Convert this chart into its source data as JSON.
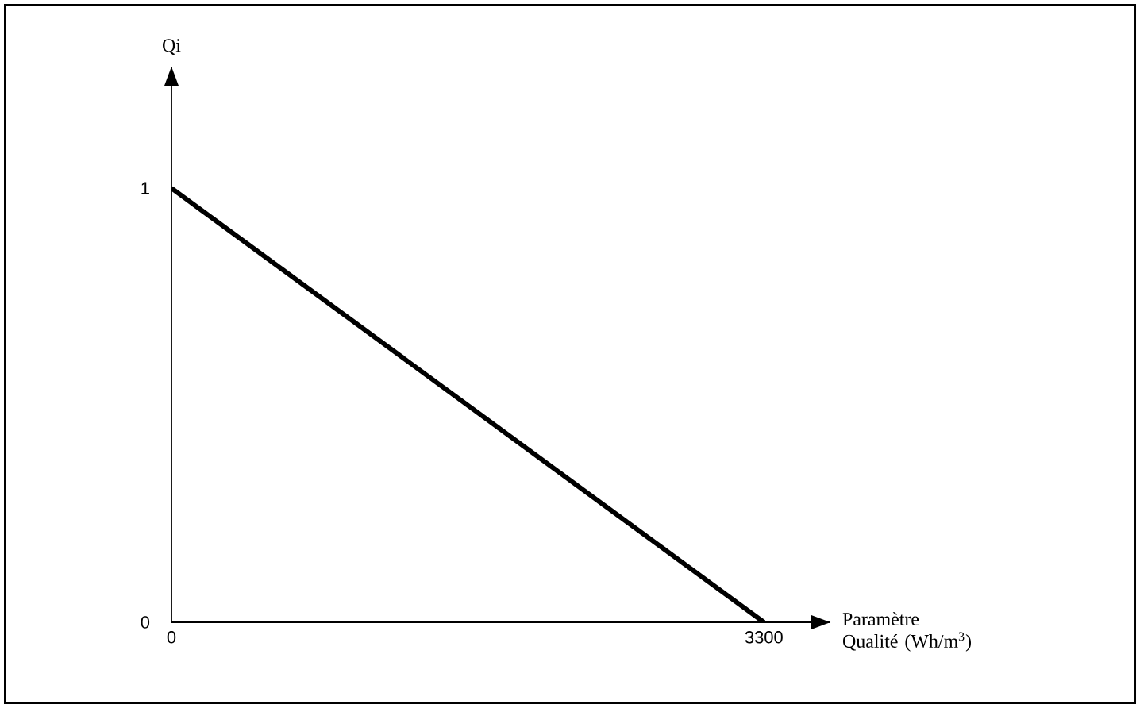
{
  "chart_data": {
    "type": "line",
    "xlabel": "Paramètre Qualité (Wh/m$^{3}$)",
    "ylabel": "Qi",
    "x": [
      0,
      3300
    ],
    "values": [
      1,
      0
    ],
    "color": "#000000",
    "xlim": [
      0,
      3670
    ],
    "ylim": [
      0,
      1.28
    ],
    "xticks": [
      0,
      3300
    ],
    "yticks": [
      0,
      1
    ],
    "grid": false
  }
}
